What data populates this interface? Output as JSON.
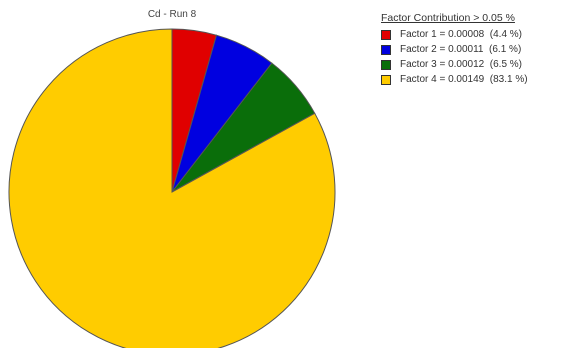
{
  "chart_data": {
    "type": "pie",
    "title": "Cd - Run 8",
    "legend_title": "Factor Contribution > 0.05 %",
    "legend_position": "right",
    "slices": [
      {
        "label": "Factor 1 = 0.00008",
        "pct_label": "(4.4 %)",
        "value": 8e-05,
        "percent": 4.4,
        "color": "#e00000"
      },
      {
        "label": "Factor 2 = 0.00011",
        "pct_label": "(6.1 %)",
        "value": 0.00011,
        "percent": 6.1,
        "color": "#0000e0"
      },
      {
        "label": "Factor 3 = 0.00012",
        "pct_label": "(6.5 %)",
        "value": 0.00012,
        "percent": 6.5,
        "color": "#0a6e0a"
      },
      {
        "label": "Factor 4 = 0.00149",
        "pct_label": "(83.1 %)",
        "value": 0.00149,
        "percent": 83.1,
        "color": "#ffcc00"
      }
    ]
  }
}
